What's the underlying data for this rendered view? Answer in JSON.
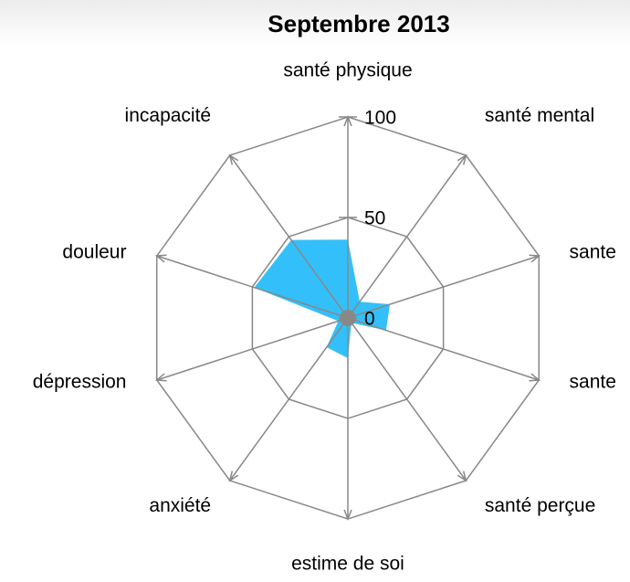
{
  "chart_data": {
    "type": "radar",
    "title": "Septembre 2013",
    "categories": [
      "santé physique",
      "santé mental",
      "sante",
      "sante",
      "santé perçue",
      "estime de soi",
      "anxiété",
      "dépression",
      "douleur",
      "incapacité"
    ],
    "values": [
      39,
      10,
      22,
      20,
      3,
      20,
      18,
      5,
      49,
      48
    ],
    "color": "#33c0fa",
    "rlim": [
      0,
      100
    ],
    "rticks": [
      0,
      50,
      100
    ],
    "grid": true
  }
}
